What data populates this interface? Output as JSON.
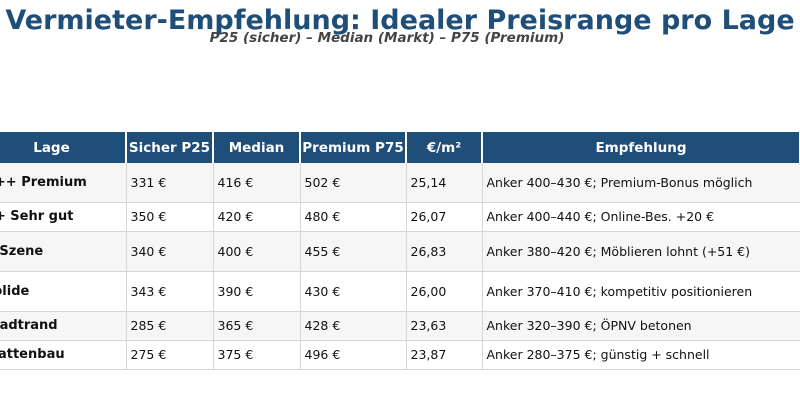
{
  "title": "Vermieter-Empfehlung: Idealer Preisrange pro Lage",
  "subtitle": "P25 (sicher) – Median (Markt) – P75 (Premium)",
  "table": {
    "headers": [
      "Lage",
      "Sicher P25",
      "Median",
      "Premium P75",
      "€/m²",
      "Empfehlung"
    ],
    "rows": [
      [
        "+++ Premium",
        "331 €",
        "416 €",
        "502 €",
        "25,14",
        "Anker 400–430 €; Premium-Bonus möglich"
      ],
      [
        "++ Sehr gut",
        "350 €",
        "420 €",
        "480 €",
        "26,07",
        "Anker 400–440 €; Online-Bes. +20 €"
      ],
      [
        "+ Szene",
        "340 €",
        "400 €",
        "455 €",
        "26,83",
        "Anker 380–420 €; Möblieren lohnt (+51 €)"
      ],
      [
        "Solide",
        "343 €",
        "390 €",
        "430 €",
        "26,00",
        "Anker 370–410 €; kompetitiv positionieren"
      ],
      [
        "Stadtrand",
        "285 €",
        "365 €",
        "428 €",
        "23,63",
        "Anker 320–390 €; ÖPNV betonen"
      ],
      [
        "Plattenbau",
        "275 €",
        "375 €",
        "496 €",
        "23,87",
        "Anker 280–375 €; günstig + schnell"
      ]
    ]
  },
  "colors": {
    "title": "#1f4e79",
    "header_bg": "#1f4e79",
    "header_text": "#ffffff",
    "row_alt_bg": "#f6f6f6",
    "grid": "#d6d6d6"
  }
}
